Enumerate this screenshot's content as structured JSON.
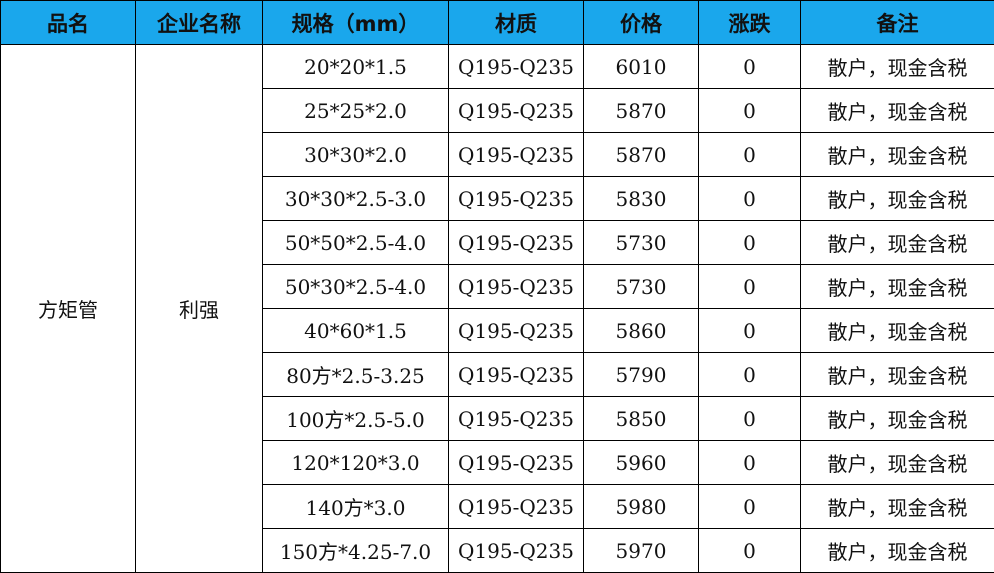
{
  "headers": [
    "品名",
    "企业名称",
    "规格（mm）",
    "材质",
    "价格",
    "涨跌",
    "备注"
  ],
  "product": "方矩管",
  "company": "利强",
  "header_color": "#1aa7ec",
  "rows": [
    {
      "spec": "20*20*1.5",
      "material": "Q195-Q235",
      "price": "6010",
      "change": "0",
      "note": "散户，现金含税"
    },
    {
      "spec": "25*25*2.0",
      "material": "Q195-Q235",
      "price": "5870",
      "change": "0",
      "note": "散户，现金含税"
    },
    {
      "spec": "30*30*2.0",
      "material": "Q195-Q235",
      "price": "5870",
      "change": "0",
      "note": "散户，现金含税"
    },
    {
      "spec": "30*30*2.5-3.0",
      "material": "Q195-Q235",
      "price": "5830",
      "change": "0",
      "note": "散户，现金含税"
    },
    {
      "spec": "50*50*2.5-4.0",
      "material": "Q195-Q235",
      "price": "5730",
      "change": "0",
      "note": "散户，现金含税"
    },
    {
      "spec": "50*30*2.5-4.0",
      "material": "Q195-Q235",
      "price": "5730",
      "change": "0",
      "note": "散户，现金含税"
    },
    {
      "spec": "40*60*1.5",
      "material": "Q195-Q235",
      "price": "5860",
      "change": "0",
      "note": "散户，现金含税"
    },
    {
      "spec": "80方*2.5-3.25",
      "material": "Q195-Q235",
      "price": "5790",
      "change": "0",
      "note": "散户，现金含税"
    },
    {
      "spec": "100方*2.5-5.0",
      "material": "Q195-Q235",
      "price": "5850",
      "change": "0",
      "note": "散户，现金含税"
    },
    {
      "spec": "120*120*3.0",
      "material": "Q195-Q235",
      "price": "5960",
      "change": "0",
      "note": "散户，现金含税"
    },
    {
      "spec": "140方*3.0",
      "material": "Q195-Q235",
      "price": "5980",
      "change": "0",
      "note": "散户，现金含税"
    },
    {
      "spec": "150方*4.25-7.0",
      "material": "Q195-Q235",
      "price": "5970",
      "change": "0",
      "note": "散户，现金含税"
    }
  ]
}
